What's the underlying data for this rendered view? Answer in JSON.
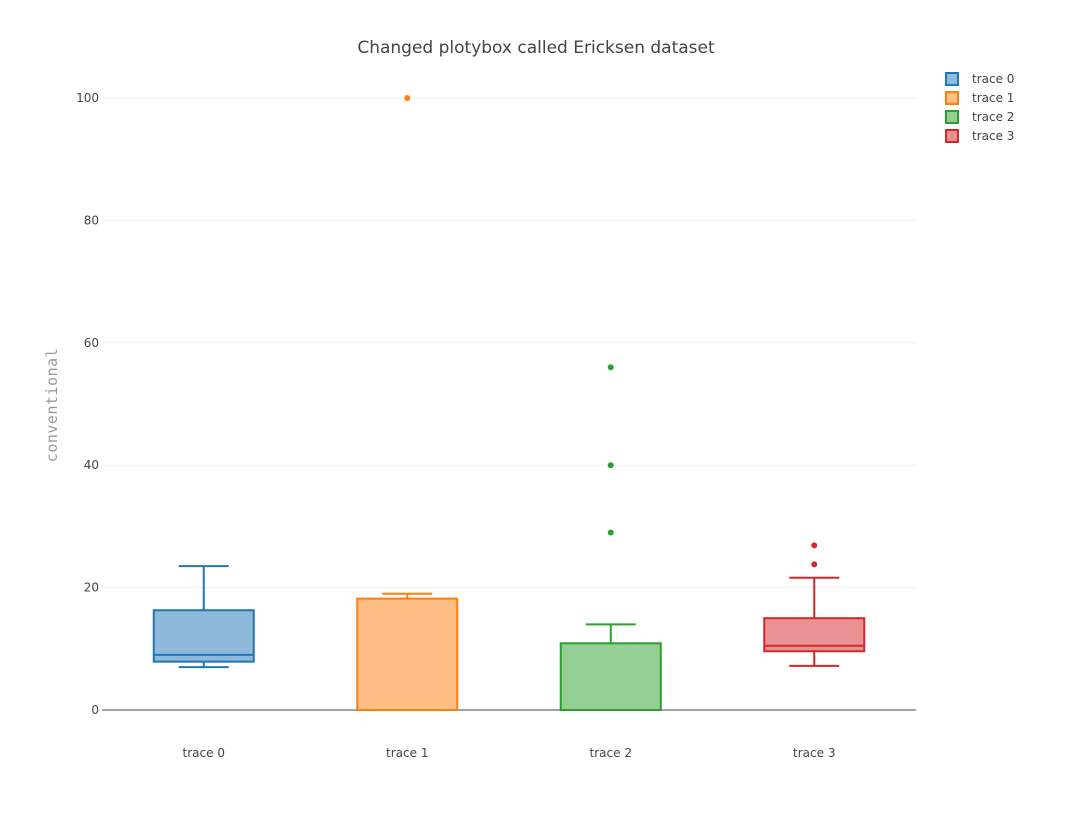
{
  "chart_data": {
    "type": "box",
    "title": "Changed plotybox called Ericksen dataset",
    "xlabel": "",
    "ylabel": "conventional",
    "ylim": [
      0,
      105
    ],
    "yticks": [
      0,
      20,
      40,
      60,
      80,
      100
    ],
    "ytick_labels": [
      "0",
      "20",
      "40",
      "60",
      "80",
      "100"
    ],
    "categories": [
      "trace 0",
      "trace 1",
      "trace 2",
      "trace 3"
    ],
    "grid": true,
    "legend_position": "top-right",
    "series": [
      {
        "name": "trace 0",
        "color": "#1f77b4",
        "fill": "#8fb9da",
        "whisker_low": 7.0,
        "q1": 7.9,
        "median": 9.0,
        "q3": 16.3,
        "whisker_high": 23.5,
        "outliers": []
      },
      {
        "name": "trace 1",
        "color": "#ff7f0e",
        "fill": "#ffbe86",
        "whisker_low": 0.0,
        "q1": 0.0,
        "median": 0.0,
        "q3": 18.2,
        "whisker_high": 19.0,
        "outliers": [
          100
        ]
      },
      {
        "name": "trace 2",
        "color": "#2ca02c",
        "fill": "#95cf95",
        "whisker_low": 0.0,
        "q1": 0.0,
        "median": 0.0,
        "q3": 10.9,
        "whisker_high": 14.0,
        "outliers": [
          29.0,
          40.0,
          56.0
        ]
      },
      {
        "name": "trace 3",
        "color": "#d62728",
        "fill": "#ea9293",
        "whisker_low": 7.2,
        "q1": 9.6,
        "median": 10.5,
        "q3": 15.0,
        "whisker_high": 21.6,
        "outliers": [
          23.8,
          26.9
        ]
      }
    ]
  }
}
